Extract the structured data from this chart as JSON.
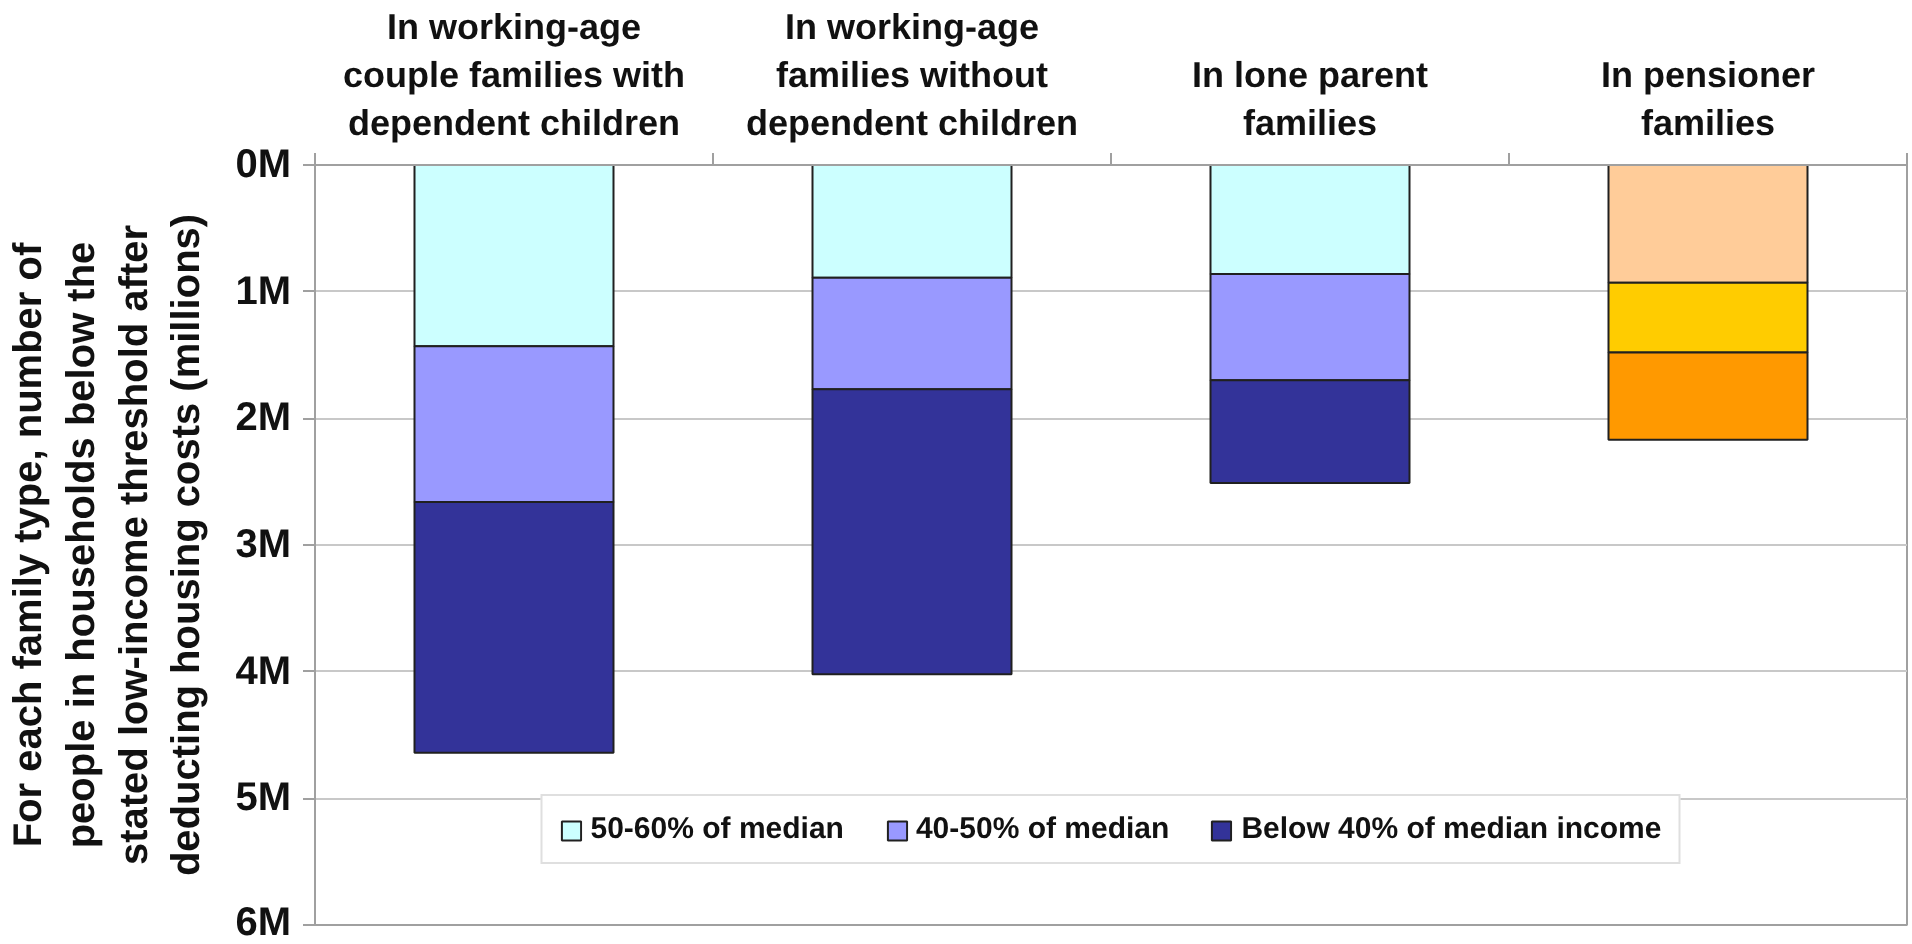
{
  "chart_data": {
    "type": "bar",
    "stacked": true,
    "categories": [
      "In working-age couple families with dependent children",
      "In working-age families without dependent children",
      "In lone parent families",
      "In pensioner families"
    ],
    "series": [
      {
        "name": "50-60% of median",
        "color": "#ccffff",
        "colors": [
          "#ccffff",
          "#ccffff",
          "#ccffff",
          "#ffcc99"
        ],
        "values": [
          1.43,
          0.89,
          0.86,
          0.93
        ]
      },
      {
        "name": "40-50% of median",
        "color": "#9999ff",
        "colors": [
          "#9999ff",
          "#9999ff",
          "#9999ff",
          "#ffcc00"
        ],
        "values": [
          1.23,
          0.88,
          0.84,
          0.55
        ]
      },
      {
        "name": "Below 40% of median income",
        "color": "#333399",
        "colors": [
          "#333399",
          "#333399",
          "#333399",
          "#ff9900"
        ],
        "values": [
          1.98,
          2.25,
          0.81,
          0.69
        ]
      }
    ],
    "ylabel": "For each family type, number of people in households below the stated low-income threshold after deducting housing costs (millions)",
    "ylim": [
      6,
      0
    ],
    "yticks": [
      {
        "value": 0,
        "label": "0M"
      },
      {
        "value": 1,
        "label": "1M"
      },
      {
        "value": 2,
        "label": "2M"
      },
      {
        "value": 3,
        "label": "3M"
      },
      {
        "value": 4,
        "label": "4M"
      },
      {
        "value": 5,
        "label": "5M"
      },
      {
        "value": 6,
        "label": "6M"
      }
    ],
    "grid": "y",
    "legend": "bottom"
  }
}
